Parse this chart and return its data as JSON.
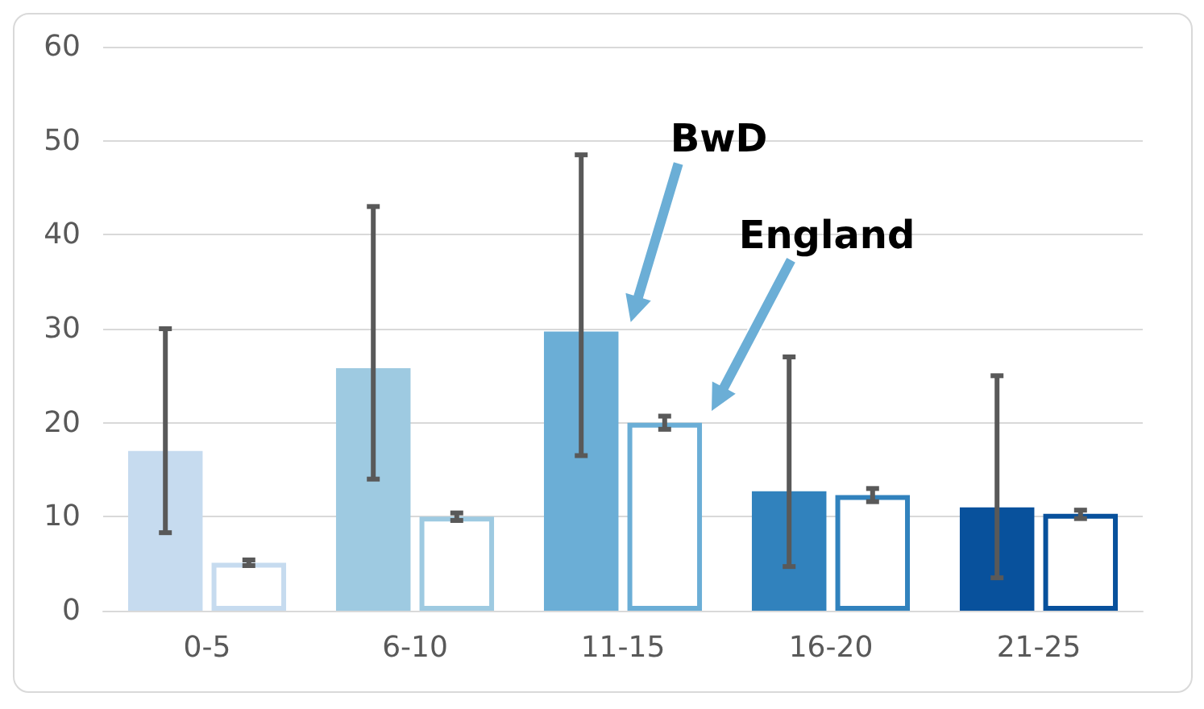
{
  "chart_data": {
    "type": "bar",
    "categories": [
      "0-5",
      "6-10",
      "11-15",
      "16-20",
      "21-25"
    ],
    "series": [
      {
        "name": null,
        "colors": [
          "#c6dbef",
          "#9ecae1",
          "#6baed6",
          "#3182bd",
          "#08519c"
        ],
        "values": [
          17,
          25.8,
          29.7,
          12.7,
          11
        ],
        "errors": [
          [
            8.3,
            30
          ],
          [
            14,
            43
          ],
          [
            16.5,
            48.5
          ],
          [
            4.7,
            27
          ],
          [
            3.5,
            25
          ]
        ]
      },
      {
        "name": null,
        "colors": [
          "#c6dbef",
          "#9ecae1",
          "#6baed6",
          "#3182bd",
          "#08519c"
        ],
        "values": [
          5.1,
          10,
          20,
          12.3,
          10.3
        ],
        "errors": [
          [
            4.8,
            5.4
          ],
          [
            9.6,
            10.4
          ],
          [
            19.3,
            20.7
          ],
          [
            11.6,
            13
          ],
          [
            9.8,
            10.7
          ]
        ]
      }
    ],
    "ylim": [
      0,
      60
    ],
    "yticks": [
      0,
      10,
      20,
      30,
      40,
      50,
      60
    ],
    "grid": "y",
    "annotations": [
      "BwD",
      "England"
    ]
  }
}
